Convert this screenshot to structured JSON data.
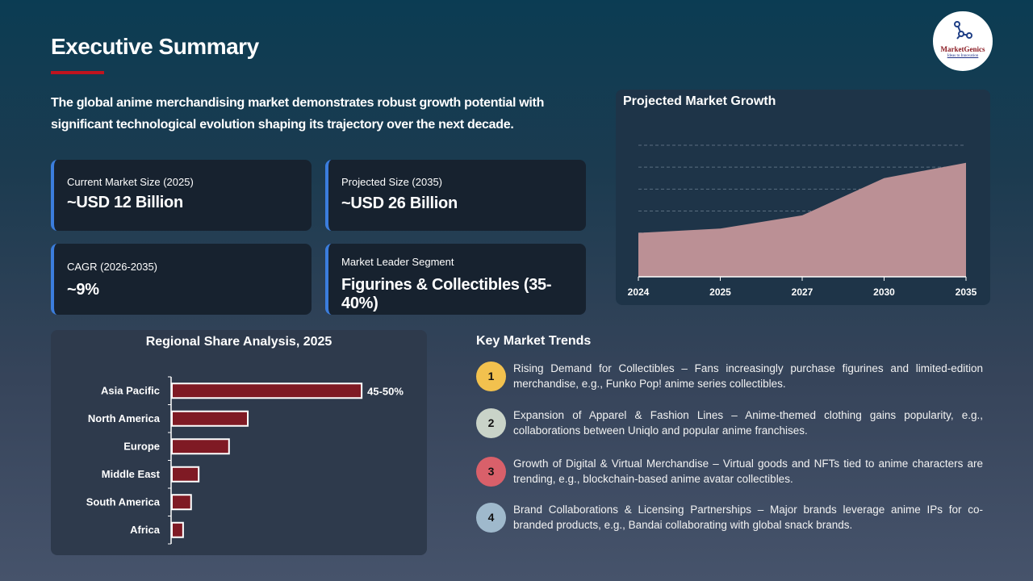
{
  "header": {
    "title": "Executive Summary",
    "logo_text": "MarketGenics",
    "logo_tagline": "Ideas to Innovation"
  },
  "intro": "The global anime merchandising market demonstrates robust growth potential with significant technological evolution shaping its trajectory over the next decade.",
  "kpis": [
    {
      "label": "Current Market Size (2025)",
      "value": "~USD 12 Billion"
    },
    {
      "label": "Projected Size (2035)",
      "value": "~USD 26 Billion"
    },
    {
      "label": "CAGR (2026-2035)",
      "value": "~9%"
    },
    {
      "label": "Market Leader Segment",
      "value": "Figurines & Collectibles (35-40%)"
    }
  ],
  "colors": {
    "accent": "#c0141e",
    "card_border": "#3b7ddd",
    "area_fill": "#bb9095",
    "bar_fill": "#7f1a24"
  },
  "chart_data": [
    {
      "type": "area",
      "title": "Projected Market Growth",
      "categories": [
        "2024",
        "2025",
        "2027",
        "2030",
        "2035"
      ],
      "values": [
        10,
        11,
        14,
        22.5,
        26
      ],
      "ylim": [
        0,
        30
      ],
      "grid": true,
      "xlabel": "",
      "ylabel": ""
    },
    {
      "type": "bar",
      "orientation": "horizontal",
      "title": "Regional Share Analysis, 2025",
      "categories": [
        "Asia Pacific",
        "North America",
        "Europe",
        "Middle East",
        "South America",
        "Africa"
      ],
      "values": [
        47.5,
        19,
        14.3,
        6.7,
        4.8,
        2.8
      ],
      "data_labels": [
        "45-50%",
        "",
        "",
        "",
        "",
        ""
      ],
      "xlabel": "",
      "ylabel": ""
    }
  ],
  "trends": {
    "title": "Key Market Trends",
    "items": [
      {
        "num": "1",
        "color": "#f2c14e",
        "text": "Rising Demand for Collectibles – Fans increasingly purchase figurines and limited-edition merchandise, e.g., Funko Pop! anime series collectibles."
      },
      {
        "num": "2",
        "color": "#c9d3c8",
        "text": "Expansion of Apparel & Fashion Lines – Anime-themed clothing gains popularity, e.g., collaborations between Uniqlo and popular anime franchises."
      },
      {
        "num": "3",
        "color": "#d9606a",
        "text": "Growth of Digital & Virtual Merchandise – Virtual goods and NFTs tied to anime characters are trending, e.g., blockchain-based anime avatar collectibles."
      },
      {
        "num": "4",
        "color": "#9fb9cc",
        "text": "Brand Collaborations & Licensing Partnerships – Major brands leverage anime IPs for co-branded products, e.g., Bandai collaborating with global snack brands."
      }
    ]
  }
}
